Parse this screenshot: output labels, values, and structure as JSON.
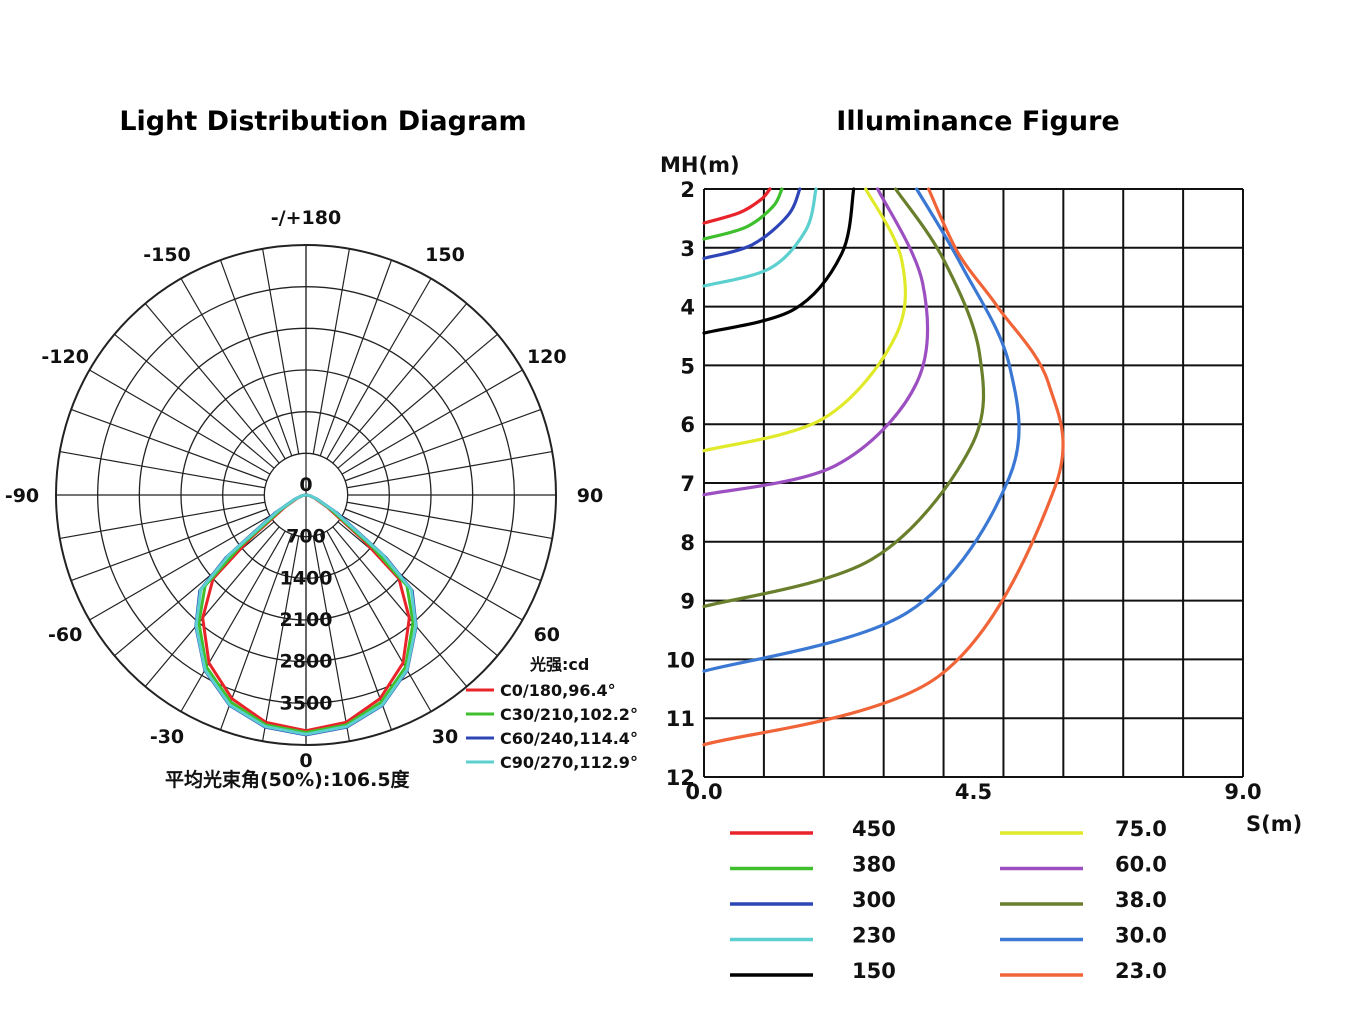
{
  "chart_data": [
    {
      "type": "polar",
      "title": "Light Distribution Diagram",
      "angle_labels": [
        {
          "angle": 180,
          "text": "-/+180"
        },
        {
          "angle": 150,
          "text": "150"
        },
        {
          "angle": -150,
          "text": "-150"
        },
        {
          "angle": 120,
          "text": "120"
        },
        {
          "angle": -120,
          "text": "-120"
        },
        {
          "angle": 90,
          "text": "90"
        },
        {
          "angle": -90,
          "text": "-90"
        },
        {
          "angle": 60,
          "text": "60"
        },
        {
          "angle": -60,
          "text": "-60"
        },
        {
          "angle": 30,
          "text": "30"
        },
        {
          "angle": -30,
          "text": "-30"
        },
        {
          "angle": 0,
          "text": "0"
        }
      ],
      "radial_ticks": [
        "0",
        "700",
        "1400",
        "2100",
        "2800",
        "3500"
      ],
      "rmax": 4200,
      "unit_label": "光强:cd",
      "beam_angle_text": "平均光束角(50%):106.5度",
      "series": [
        {
          "name": "C0/180,96.4°",
          "color": "#e8242a",
          "angles": [
            0,
            10,
            20,
            30,
            40,
            48,
            52,
            60,
            70,
            80,
            90
          ],
          "values": [
            3960,
            3880,
            3640,
            3260,
            2700,
            2100,
            1200,
            420,
            160,
            60,
            0
          ]
        },
        {
          "name": "C30/210,102.2°",
          "color": "#3fbf2e",
          "angles": [
            0,
            10,
            20,
            30,
            40,
            48,
            52,
            60,
            70,
            80,
            90
          ],
          "values": [
            3990,
            3920,
            3700,
            3340,
            2800,
            2280,
            1400,
            480,
            180,
            60,
            0
          ]
        },
        {
          "name": "C60/240,114.4°",
          "color": "#2e45b8",
          "angles": [
            0,
            10,
            20,
            30,
            40,
            48,
            52,
            60,
            70,
            80,
            90
          ],
          "values": [
            4030,
            3960,
            3760,
            3400,
            2880,
            2400,
            1700,
            600,
            200,
            70,
            0
          ]
        },
        {
          "name": "C90/270,112.9°",
          "color": "#5ccfcf",
          "angles": [
            0,
            10,
            20,
            30,
            40,
            48,
            52,
            60,
            70,
            80,
            90
          ],
          "values": [
            4020,
            3950,
            3750,
            3390,
            2870,
            2380,
            1650,
            560,
            190,
            70,
            0
          ]
        }
      ]
    },
    {
      "type": "line",
      "title": "Illuminance Figure",
      "xlabel": "S(m)",
      "ylabel": "MH(m)",
      "xlim": [
        0,
        9
      ],
      "ylim": [
        2,
        12
      ],
      "x_tick_labels": [
        "0.0",
        "4.5",
        "9.0"
      ],
      "y_tick_labels": [
        "2",
        "3",
        "4",
        "5",
        "6",
        "7",
        "8",
        "9",
        "10",
        "11",
        "12"
      ],
      "series": [
        {
          "name": "450",
          "color": "#e8242a",
          "points": [
            [
              0,
              2.58
            ],
            [
              0.6,
              2.4
            ],
            [
              0.95,
              2.18
            ],
            [
              1.1,
              2.0
            ]
          ]
        },
        {
          "name": "380",
          "color": "#3fbf2e",
          "points": [
            [
              0,
              2.85
            ],
            [
              0.7,
              2.65
            ],
            [
              1.15,
              2.3
            ],
            [
              1.3,
              2.0
            ]
          ]
        },
        {
          "name": "300",
          "color": "#2e45b8",
          "points": [
            [
              0,
              3.18
            ],
            [
              0.8,
              2.95
            ],
            [
              1.4,
              2.45
            ],
            [
              1.6,
              2.0
            ]
          ]
        },
        {
          "name": "230",
          "color": "#5ccfcf",
          "points": [
            [
              0,
              3.65
            ],
            [
              1.1,
              3.35
            ],
            [
              1.7,
              2.7
            ],
            [
              1.87,
              2.0
            ]
          ]
        },
        {
          "name": "150",
          "color": "#000000",
          "points": [
            [
              0,
              4.45
            ],
            [
              1.5,
              4.05
            ],
            [
              2.3,
              3.1
            ],
            [
              2.5,
              2.0
            ]
          ]
        },
        {
          "name": "75.0",
          "color": "#e1ea2a",
          "points": [
            [
              0,
              6.45
            ],
            [
              2.0,
              5.9
            ],
            [
              3.2,
              4.5
            ],
            [
              3.3,
              3.2
            ],
            [
              2.7,
              2.0
            ]
          ]
        },
        {
          "name": "60.0",
          "color": "#9c4fc0",
          "points": [
            [
              0,
              7.2
            ],
            [
              2.2,
              6.7
            ],
            [
              3.55,
              5.3
            ],
            [
              3.65,
              3.6
            ],
            [
              2.9,
              2.0
            ]
          ]
        },
        {
          "name": "38.0",
          "color": "#697f2c",
          "points": [
            [
              0,
              9.1
            ],
            [
              2.8,
              8.3
            ],
            [
              4.45,
              6.4
            ],
            [
              4.6,
              4.8
            ],
            [
              4.0,
              3.2
            ],
            [
              3.2,
              2.0
            ]
          ]
        },
        {
          "name": "30.0",
          "color": "#3a78d4",
          "points": [
            [
              0,
              10.2
            ],
            [
              3.4,
              9.2
            ],
            [
              5.1,
              6.9
            ],
            [
              5.1,
              5.0
            ],
            [
              4.3,
              3.3
            ],
            [
              3.55,
              2.0
            ]
          ]
        },
        {
          "name": "23.0",
          "color": "#f06438",
          "points": [
            [
              0,
              11.45
            ],
            [
              3.9,
              10.3
            ],
            [
              5.85,
              7.1
            ],
            [
              5.75,
              5.3
            ],
            [
              4.9,
              4.0
            ],
            [
              4.25,
              3.1
            ],
            [
              3.75,
              2.0
            ]
          ]
        }
      ]
    }
  ]
}
